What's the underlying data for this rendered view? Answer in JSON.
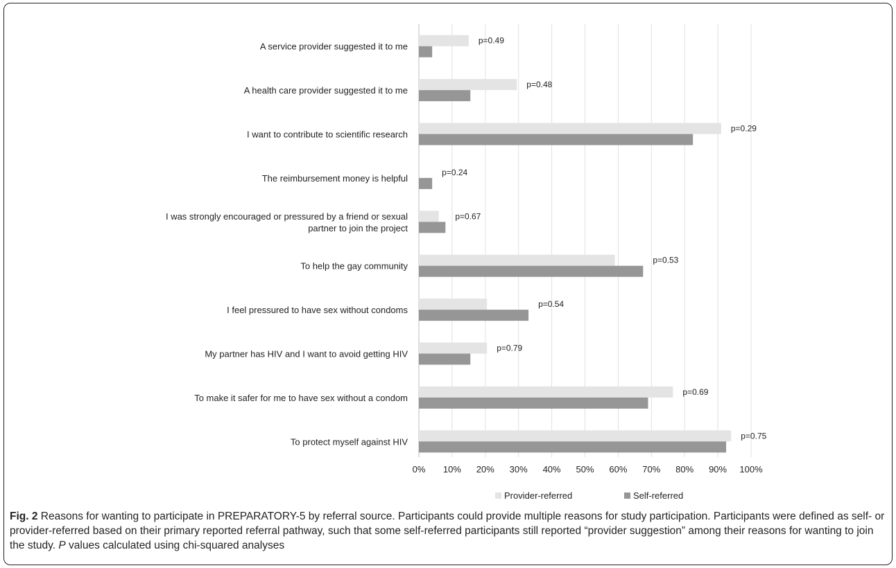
{
  "chart_data": {
    "type": "bar",
    "orientation": "horizontal",
    "categories": [
      "A service provider suggested it to me",
      "A health care provider suggested it to me",
      "I want to contribute to scientific research",
      "The reimbursement money is helpful",
      "I was strongly encouraged or pressured by a friend or sexual partner to join the project",
      "To help the gay community",
      "I feel pressured to have sex without condoms",
      "My partner has HIV and I want to avoid getting HIV",
      "To make it safer for me to have sex without a condom",
      "To protect myself against HIV"
    ],
    "category_lines": [
      [
        "A service provider suggested it to me"
      ],
      [
        "A health care provider suggested it to me"
      ],
      [
        "I want to contribute to scientific research"
      ],
      [
        "The reimbursement money is helpful"
      ],
      [
        "I was strongly encouraged or pressured by a friend or sexual",
        "partner to join the project"
      ],
      [
        "To help the gay community"
      ],
      [
        "I feel pressured to have sex without condoms"
      ],
      [
        "My partner has HIV and I want to avoid getting HIV"
      ],
      [
        "To make it safer for me to have sex without a condom"
      ],
      [
        "To protect myself against HIV"
      ]
    ],
    "series": [
      {
        "name": "Provider-referred",
        "color": "#e4e4e4",
        "values": [
          15,
          29.5,
          91,
          0,
          6,
          59,
          20.5,
          20.5,
          76.5,
          94
        ]
      },
      {
        "name": "Self-referred",
        "color": "#969696",
        "values": [
          4,
          15.5,
          82.5,
          4,
          8,
          67.5,
          33,
          15.5,
          69,
          92.5
        ]
      }
    ],
    "p_values": [
      "p=0.49",
      "p=0.48",
      "p=0.29",
      "p=0.24",
      "p=0.67",
      "p=0.53",
      "p=0.54",
      "p=0.79",
      "p=0.69",
      "p=0.75"
    ],
    "x_ticks": [
      "0%",
      "10%",
      "20%",
      "30%",
      "40%",
      "50%",
      "60%",
      "70%",
      "80%",
      "90%",
      "100%"
    ],
    "xlim": [
      0,
      100
    ],
    "grid": "vertical",
    "legend_position": "bottom"
  },
  "caption": {
    "fig_label": "Fig. 2",
    "text_before": " Reasons for wanting to participate in PREPARATORY-5 by referral source. Participants could provide multiple reasons for study participation. Participants were defined as self- or provider-referred based on their primary reported referral pathway, such that some self-referred participants still reported “provider suggestion” among their reasons for wanting to join the study. ",
    "p_letter": "P",
    "text_after": " values calculated using chi-squared analyses"
  }
}
